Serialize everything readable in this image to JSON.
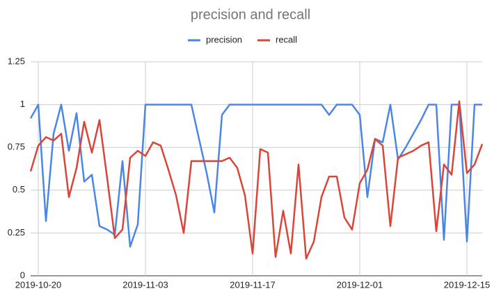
{
  "chart_data": {
    "type": "line",
    "title": "precision and recall",
    "x": [
      "2019-10-19",
      "2019-10-20",
      "2019-10-21",
      "2019-10-22",
      "2019-10-23",
      "2019-10-24",
      "2019-10-25",
      "2019-10-26",
      "2019-10-27",
      "2019-10-28",
      "2019-10-29",
      "2019-10-30",
      "2019-10-31",
      "2019-11-01",
      "2019-11-02",
      "2019-11-03",
      "2019-11-04",
      "2019-11-05",
      "2019-11-06",
      "2019-11-07",
      "2019-11-08",
      "2019-11-09",
      "2019-11-10",
      "2019-11-11",
      "2019-11-12",
      "2019-11-13",
      "2019-11-14",
      "2019-11-15",
      "2019-11-16",
      "2019-11-17",
      "2019-11-18",
      "2019-11-19",
      "2019-11-20",
      "2019-11-21",
      "2019-11-22",
      "2019-11-23",
      "2019-11-24",
      "2019-11-25",
      "2019-11-26",
      "2019-11-27",
      "2019-11-28",
      "2019-11-29",
      "2019-11-30",
      "2019-12-01",
      "2019-12-02",
      "2019-12-03",
      "2019-12-04",
      "2019-12-05",
      "2019-12-06",
      "2019-12-07",
      "2019-12-08",
      "2019-12-09",
      "2019-12-10",
      "2019-12-11",
      "2019-12-12",
      "2019-12-13",
      "2019-12-14",
      "2019-12-15",
      "2019-12-16",
      "2019-12-17"
    ],
    "series": [
      {
        "name": "precision",
        "color": "#4a86e8",
        "values": [
          0.92,
          1,
          0.32,
          0.83,
          1,
          0.73,
          0.95,
          0.55,
          0.59,
          0.29,
          0.27,
          0.24,
          0.67,
          0.17,
          0.3,
          1,
          1,
          1,
          1,
          1,
          1,
          1,
          0.8,
          0.6,
          0.37,
          0.94,
          1,
          1,
          1,
          1,
          1,
          1,
          1,
          1,
          1,
          1,
          1,
          1,
          1,
          0.94,
          1,
          1,
          1,
          0.94,
          0.46,
          0.8,
          0.78,
          1,
          0.68,
          0.75,
          0.83,
          0.91,
          1,
          1,
          0.21,
          1,
          1,
          0.2,
          1,
          1
        ]
      },
      {
        "name": "recall",
        "color": "#db4437",
        "values": [
          0.61,
          0.76,
          0.81,
          0.79,
          0.83,
          0.46,
          0.63,
          0.9,
          0.72,
          0.91,
          0.57,
          0.22,
          0.27,
          0.69,
          0.73,
          0.7,
          0.78,
          0.76,
          0.62,
          0.47,
          0.25,
          0.67,
          0.67,
          0.67,
          0.67,
          0.67,
          0.69,
          0.63,
          0.47,
          0.13,
          0.74,
          0.72,
          0.11,
          0.38,
          0.13,
          0.65,
          0.1,
          0.2,
          0.46,
          0.58,
          0.58,
          0.34,
          0.27,
          0.54,
          0.62,
          0.8,
          0.76,
          0.29,
          0.69,
          0.71,
          0.73,
          0.76,
          0.78,
          0.26,
          0.65,
          0.59,
          1.02,
          0.6,
          0.65,
          0.77
        ]
      }
    ],
    "xlim": [
      "2019-10-19",
      "2019-12-17"
    ],
    "xticks": [
      "2019-10-20",
      "2019-11-03",
      "2019-11-17",
      "2019-12-01",
      "2019-12-15"
    ],
    "ylim": [
      0,
      1.25
    ],
    "yticks": [
      0,
      0.25,
      0.5,
      0.75,
      1,
      1.25
    ],
    "grid": true,
    "legend": "top"
  }
}
